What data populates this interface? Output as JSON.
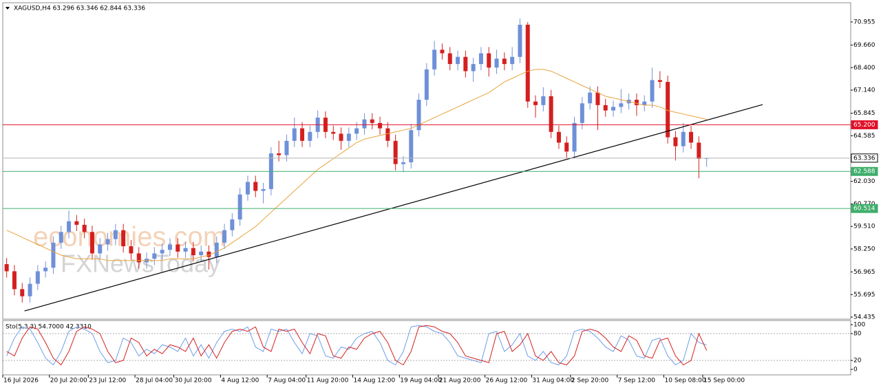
{
  "chart_data": [
    {
      "type": "candlestick",
      "title": "XAGUSD,H4  63.296 63.346 62.844 63.336",
      "categories": [
        "16 Jul 2026",
        null,
        null,
        null,
        null,
        null,
        "20 Jul 20:00",
        null,
        null,
        null,
        null,
        "23 Jul 12:00",
        null,
        null,
        null,
        null,
        null,
        "28 Jul 04:00",
        null,
        null,
        null,
        null,
        "30 Jul 20:00",
        null,
        null,
        null,
        null,
        null,
        "4 Aug 12:00",
        null,
        null,
        null,
        null,
        null,
        "7 Aug 04:00",
        null,
        null,
        null,
        null,
        "11 Aug 20:00",
        null,
        null,
        null,
        null,
        null,
        "14 Aug 12:00",
        null,
        null,
        null,
        null,
        null,
        "19 Aug 04:00",
        null,
        null,
        null,
        null,
        "21 Aug 20:00",
        null,
        null,
        null,
        null,
        null,
        "26 Aug 12:00",
        null,
        null,
        null,
        null,
        null,
        "31 Aug 04:00",
        null,
        null,
        null,
        null,
        "2 Sep 20:00",
        null,
        null,
        null,
        null,
        null,
        "7 Sep 12:00",
        null,
        null,
        null,
        null,
        null,
        "10 Sep 08:00",
        null,
        null,
        null,
        null,
        "15 Sep 00:00"
      ],
      "open": [
        57.4,
        57.0,
        56.0,
        55.6,
        56.3,
        57.0,
        57.2,
        58.6,
        59.2,
        59.8,
        59.6,
        59.2,
        58.0,
        58.5,
        58.8,
        59.3,
        58.4,
        58.0,
        57.5,
        57.7,
        58.0,
        58.2,
        58.5,
        58.1,
        58.3,
        57.9,
        58.1,
        57.8,
        58.6,
        59.3,
        59.9,
        61.3,
        62.0,
        61.5,
        61.6,
        63.6,
        63.5,
        64.3,
        65.0,
        64.3,
        64.8,
        65.6,
        64.8,
        64.7,
        64.3,
        64.7,
        65.0,
        65.5,
        65.3,
        65.0,
        64.3,
        63.0,
        63.1,
        64.9,
        66.6,
        68.3,
        69.4,
        69.2,
        68.6,
        69.0,
        68.2,
        68.6,
        69.2,
        68.4,
        68.9,
        68.6,
        69.0,
        70.8,
        66.5,
        66.3,
        66.8,
        64.8,
        64.2,
        63.7,
        65.3,
        66.4,
        67.0,
        66.3,
        66.0,
        66.2,
        66.4,
        66.6,
        66.3,
        66.5,
        67.7,
        67.6,
        64.5,
        64.0,
        64.8,
        64.2,
        63.296
      ],
      "high": [
        57.75,
        57.35,
        56.35,
        56.65,
        57.35,
        57.55,
        58.95,
        59.55,
        60.4,
        60.15,
        59.95,
        59.55,
        58.85,
        59.15,
        59.65,
        59.65,
        58.75,
        58.35,
        58.05,
        58.35,
        58.55,
        58.85,
        58.85,
        58.65,
        58.65,
        58.45,
        58.45,
        58.95,
        59.65,
        60.25,
        61.65,
        62.35,
        62.35,
        61.95,
        63.95,
        64.3,
        64.65,
        65.6,
        65.35,
        65.15,
        66.0,
        65.95,
        65.15,
        65.05,
        65.05,
        65.35,
        65.85,
        65.85,
        65.65,
        65.35,
        64.65,
        63.45,
        65.25,
        66.95,
        68.65,
        69.9,
        69.75,
        69.55,
        69.35,
        69.35,
        68.95,
        69.55,
        69.55,
        69.4,
        69.25,
        69.55,
        71.15,
        70.95,
        66.85,
        67.3,
        67.15,
        65.15,
        64.55,
        65.65,
        66.75,
        67.35,
        67.35,
        66.65,
        66.55,
        67.2,
        66.95,
        66.95,
        66.85,
        68.4,
        68.2,
        67.95,
        64.85,
        65.3,
        65.15,
        64.55,
        63.346
      ],
      "low": [
        56.65,
        55.65,
        55.25,
        55.25,
        55.95,
        56.65,
        56.85,
        58.25,
        58.85,
        59.25,
        58.85,
        57.65,
        57.65,
        58.15,
        58.45,
        58.05,
        57.65,
        57.15,
        57.15,
        57.35,
        57.65,
        57.85,
        57.75,
        57.75,
        57.55,
        57.55,
        57.1,
        57.45,
        58.25,
        58.95,
        59.55,
        60.95,
        61.15,
        60.8,
        61.25,
        63.15,
        63.15,
        63.95,
        63.95,
        63.95,
        64.45,
        64.45,
        64.35,
        63.8,
        63.95,
        64.35,
        64.65,
        64.95,
        64.65,
        63.95,
        62.65,
        62.55,
        62.75,
        64.55,
        66.25,
        67.95,
        68.85,
        68.25,
        68.25,
        67.85,
        67.6,
        68.25,
        67.9,
        68.05,
        68.25,
        68.25,
        68.65,
        66.15,
        65.6,
        65.95,
        64.45,
        63.85,
        63.35,
        63.35,
        64.95,
        66.05,
        64.9,
        65.65,
        65.65,
        65.85,
        66.05,
        65.7,
        65.95,
        66.15,
        67.25,
        64.15,
        63.2,
        63.65,
        63.85,
        62.2,
        62.844
      ],
      "close": [
        57.0,
        56.0,
        55.6,
        56.3,
        57.0,
        57.2,
        58.6,
        59.2,
        59.8,
        59.6,
        59.2,
        58.0,
        58.5,
        58.8,
        59.3,
        58.4,
        58.0,
        57.5,
        57.7,
        58.0,
        58.2,
        58.5,
        58.1,
        58.3,
        57.9,
        58.1,
        57.8,
        58.6,
        59.3,
        59.9,
        61.3,
        62.0,
        61.5,
        61.6,
        63.6,
        63.5,
        64.3,
        65.0,
        64.3,
        64.8,
        65.6,
        64.8,
        64.7,
        64.3,
        64.7,
        65.0,
        65.5,
        65.3,
        65.0,
        64.3,
        63.0,
        63.1,
        64.9,
        66.6,
        68.3,
        69.4,
        69.2,
        68.6,
        69.0,
        68.2,
        68.6,
        69.2,
        68.4,
        68.9,
        68.6,
        69.0,
        70.8,
        66.5,
        66.3,
        66.8,
        64.8,
        64.2,
        63.7,
        65.3,
        66.4,
        67.0,
        66.3,
        66.0,
        66.2,
        66.4,
        66.6,
        66.3,
        66.5,
        67.7,
        67.6,
        64.5,
        64.0,
        64.8,
        64.2,
        63.296,
        63.336
      ],
      "up_color": "#6f90d8",
      "down_color": "#d41f1f",
      "ma": {
        "color": "#e8a33c",
        "values": [
          59.3,
          59.1,
          58.9,
          58.7,
          58.5,
          58.3,
          58.1,
          57.9,
          57.8,
          57.7,
          57.7,
          57.7,
          57.7,
          57.6,
          57.6,
          57.6,
          57.6,
          57.6,
          57.6,
          57.6,
          57.6,
          57.7,
          57.7,
          57.7,
          57.7,
          57.8,
          57.9,
          58.1,
          58.3,
          58.6,
          58.9,
          59.2,
          59.5,
          59.9,
          60.3,
          60.7,
          61.1,
          61.5,
          61.9,
          62.3,
          62.7,
          63.0,
          63.3,
          63.6,
          63.9,
          64.2,
          64.4,
          64.5,
          64.6,
          64.7,
          64.8,
          64.9,
          65.0,
          65.2,
          65.4,
          65.6,
          65.8,
          66.0,
          66.2,
          66.4,
          66.6,
          66.8,
          67.0,
          67.3,
          67.6,
          67.8,
          68.0,
          68.2,
          68.3,
          68.3,
          68.2,
          68.0,
          67.8,
          67.6,
          67.4,
          67.2,
          67.0,
          66.8,
          66.7,
          66.6,
          66.5,
          66.4,
          66.3,
          66.3,
          66.2,
          66.0,
          65.9,
          65.8,
          65.7,
          65.6,
          65.5
        ]
      },
      "trendline": {
        "x": [
          2.3,
          97.2
        ],
        "y": [
          54.78,
          66.33
        ],
        "color": "#000000"
      },
      "levels": [
        {
          "value": 65.2,
          "label": "65.200",
          "color": "#e0102a"
        },
        {
          "value": 63.336,
          "label": "63.336",
          "color": "#b4b4b4"
        },
        {
          "value": 62.588,
          "label": "62.588",
          "color": "#3fae6a"
        },
        {
          "value": 60.514,
          "label": "60.514",
          "color": "#3fae6a"
        }
      ],
      "watermark": [
        "economies.com",
        "FXNewsToday"
      ],
      "ylim": [
        54.32,
        72.03
      ],
      "yticks": [
        70.955,
        {
          "value": 69.66,
          "label": "69.660"
        },
        {
          "value": 68.4,
          "label": "68.400"
        },
        {
          "value": 67.14,
          "label": "67.140"
        },
        65.845,
        64.585,
        {
          "value": 62.03,
          "label": "62.030"
        },
        {
          "value": 60.77,
          "label": "60.770"
        },
        {
          "value": 59.51,
          "label": "59.510"
        },
        {
          "value": 58.25,
          "label": "58.250"
        },
        56.965,
        55.695,
        54.435
      ]
    },
    {
      "type": "line",
      "title": "Sto(5,3,3) 54.7000 42.3310",
      "series": [
        {
          "color": "#6e9de8",
          "values": [
            30,
            70,
            95,
            90,
            60,
            25,
            10,
            40,
            85,
            95,
            90,
            80,
            40,
            15,
            20,
            70,
            60,
            30,
            45,
            35,
            55,
            50,
            40,
            70,
            30,
            55,
            25,
            60,
            85,
            90,
            85,
            95,
            50,
            40,
            90,
            85,
            90,
            60,
            35,
            80,
            75,
            30,
            25,
            50,
            45,
            70,
            80,
            85,
            60,
            20,
            10,
            40,
            95,
            98,
            95,
            85,
            80,
            60,
            30,
            25,
            20,
            15,
            80,
            85,
            40,
            55,
            80,
            30,
            20,
            40,
            15,
            10,
            30,
            85,
            90,
            85,
            70,
            50,
            40,
            75,
            65,
            30,
            25,
            65,
            70,
            30,
            10,
            20,
            80,
            60,
            54.7
          ]
        },
        {
          "color": "#d41f1f",
          "values": [
            40,
            30,
            70,
            95,
            90,
            60,
            25,
            10,
            40,
            85,
            95,
            90,
            80,
            40,
            15,
            20,
            70,
            60,
            30,
            45,
            35,
            55,
            50,
            40,
            70,
            30,
            55,
            25,
            60,
            85,
            90,
            85,
            95,
            50,
            40,
            90,
            85,
            90,
            60,
            35,
            80,
            75,
            30,
            25,
            50,
            45,
            70,
            80,
            85,
            60,
            20,
            10,
            40,
            95,
            98,
            95,
            85,
            80,
            60,
            30,
            25,
            20,
            15,
            80,
            85,
            40,
            55,
            80,
            30,
            20,
            40,
            15,
            10,
            30,
            85,
            90,
            85,
            70,
            50,
            40,
            75,
            65,
            30,
            25,
            65,
            70,
            30,
            10,
            20,
            80,
            42.331
          ]
        }
      ],
      "ylim": [
        -12.3,
        109.2
      ],
      "yticks": [
        100,
        80,
        20,
        0
      ],
      "levels": [
        80,
        20
      ]
    }
  ]
}
